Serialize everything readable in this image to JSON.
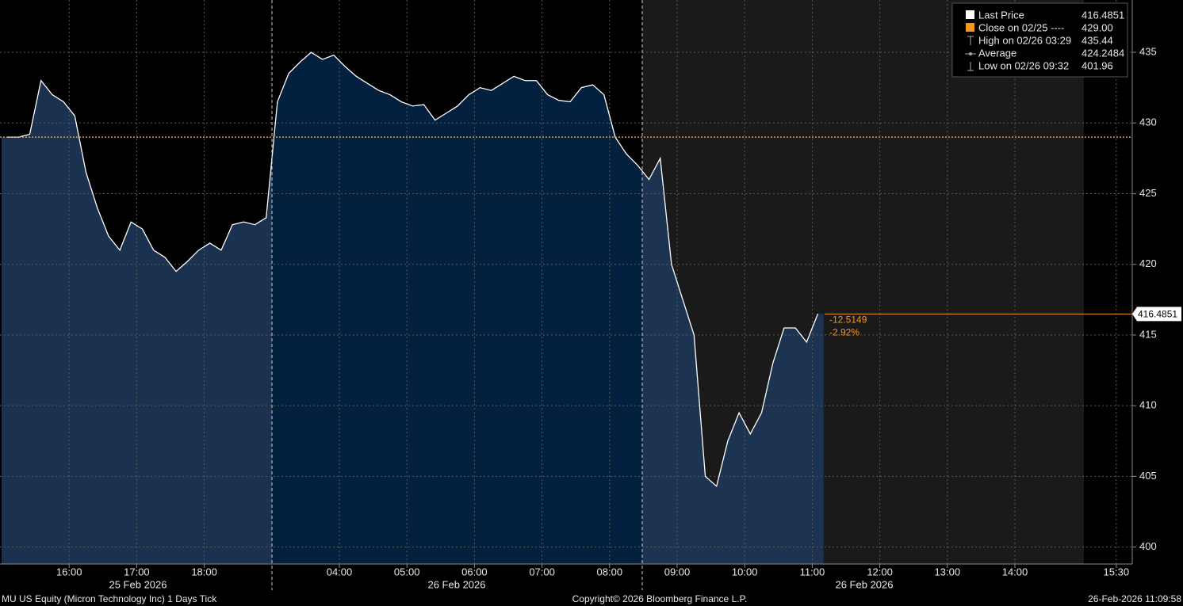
{
  "chart_data": {
    "type": "line",
    "categories": [
      null,
      null,
      null,
      null,
      null,
      null,
      "16:00",
      null,
      null,
      null,
      null,
      null,
      "17:00",
      null,
      null,
      null,
      null,
      null,
      "18:00",
      null,
      null,
      null,
      null,
      null,
      null,
      null,
      null,
      null,
      null,
      null,
      "04:00",
      null,
      null,
      null,
      null,
      null,
      "05:00",
      null,
      null,
      null,
      null,
      null,
      "06:00",
      null,
      null,
      null,
      null,
      null,
      "07:00",
      null,
      null,
      null,
      null,
      null,
      "08:00",
      null,
      null,
      null,
      null,
      null,
      "09:00",
      null,
      null,
      null,
      null,
      null,
      "10:00",
      null,
      null,
      null,
      null,
      null,
      "11:00",
      null,
      null,
      null,
      null,
      null,
      "12:00",
      null,
      null,
      null,
      null,
      null,
      "13:00",
      null,
      null,
      null,
      null,
      null,
      "14:00",
      null,
      null,
      null,
      null,
      null,
      null,
      null,
      null,
      "15:30",
      null,
      null
    ],
    "series": [
      {
        "name": "Last Price",
        "color": "#ffffff",
        "values": [
          429,
          429,
          429.2,
          433,
          432,
          431.5,
          430.5,
          426.5,
          424,
          422,
          421,
          423,
          422.5,
          421,
          420.5,
          419.5,
          420.2,
          421,
          421.5,
          421,
          422.8,
          423,
          422.8,
          423.3,
          431.5,
          433.5,
          434.3,
          435,
          434.5,
          434.8,
          434,
          433.3,
          432.8,
          432.3,
          432,
          431.5,
          431.2,
          431.3,
          430.2,
          430.7,
          431.2,
          432,
          432.5,
          432.3,
          432.8,
          433.3,
          433,
          433,
          432,
          431.6,
          431.5,
          432.5,
          432.7,
          432,
          429,
          427.8,
          427,
          426,
          427.5,
          420,
          417.5,
          415,
          405,
          404.3,
          407.5,
          409.5,
          408,
          409.5,
          413,
          415.5,
          415.5,
          414.5,
          416.5,
          null,
          null,
          null,
          null,
          null,
          null,
          null,
          null,
          null,
          null,
          null,
          null,
          null,
          null,
          null,
          null,
          null,
          null,
          null,
          null,
          null,
          null,
          null,
          null,
          null,
          null,
          null,
          null,
          null
        ]
      }
    ],
    "ylim": [
      398.8,
      438.7
    ],
    "yticks": [
      400,
      405,
      410,
      415,
      420,
      425,
      430,
      435
    ],
    "grid": true,
    "last_price": 416.4851,
    "change_labels": [
      "-12.5149",
      "-2.92%"
    ],
    "legend_items": [
      {
        "name": "Close on 02/25 ----",
        "value": {
          "value": 429,
          "label": "429.00"
        },
        "color": "#f7941d"
      },
      {
        "name": "High on 02/26 03:29",
        "value": 435.44
      },
      {
        "name": "Average",
        "value": 424.2484
      },
      {
        "name": "Low on 02/26 09:32",
        "value": 401.96
      }
    ],
    "x_date_labels": [
      "25 Feb 2026",
      "26 Feb 2026",
      "26 Feb 2026"
    ],
    "footer": {
      "left": "MU US Equity (Micron Technology Inc) 1 Days Tick",
      "center": "Copyright© 2026 Bloomberg Finance L.P.",
      "right": "26-Feb-2026 11:09:58"
    }
  }
}
